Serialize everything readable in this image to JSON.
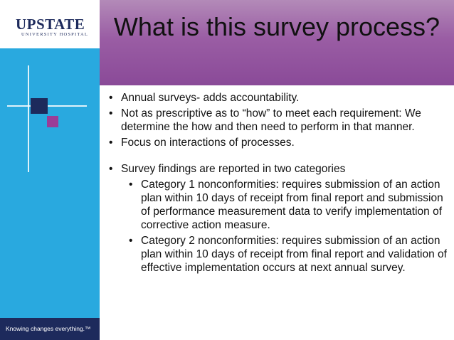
{
  "brand": {
    "logo_main": "UPSTATE",
    "logo_sub": "UNIVERSITY HOSPITAL",
    "tagline": "Knowing changes everything.™"
  },
  "slide": {
    "title": "What is this survey process?"
  },
  "bullets": [
    {
      "text": "Annual surveys- adds accountability."
    },
    {
      "text": "Not as prescriptive as to “how” to meet each requirement: We determine the how and then need to perform in that manner."
    },
    {
      "text": "Focus on interactions of processes."
    },
    {
      "text": "Survey findings are reported in two categories"
    }
  ],
  "sub_bullets": [
    {
      "text": "Category 1 nonconformities: requires submission of an action plan within 10 days of receipt from final report and submission of performance measurement data to verify implementation of corrective action measure."
    },
    {
      "text": "Category 2 nonconformities: requires submission of an action plan within 10 days of receipt from final report and validation of effective implementation occurs at next annual survey."
    }
  ],
  "colors": {
    "sidebar": "#29a9df",
    "navy": "#1d2a5c",
    "purple_accent": "#9b3c97",
    "title_band": "#9a5da4"
  }
}
